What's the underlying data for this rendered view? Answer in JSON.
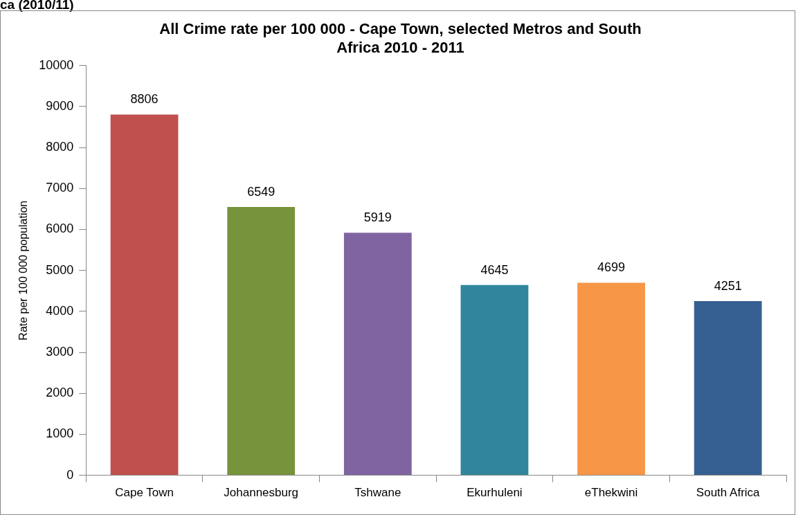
{
  "chart_data": {
    "type": "bar",
    "title": "All Crime rate per 100 000 - Cape Town, selected Metros and South Africa 2010 - 2011",
    "ylabel": "Rate per 100 000 population",
    "annotations": [
      "ca (2010/11)"
    ],
    "categories": [
      "Cape Town",
      "Johannesburg",
      "Tshwane",
      "Ekurhuleni",
      "eThekwini",
      "South Africa"
    ],
    "values": [
      8806,
      6549,
      5919,
      4645,
      4699,
      4251
    ],
    "colors": [
      "#c0504d",
      "#77933c",
      "#8064a2",
      "#31859c",
      "#f79646",
      "#376092"
    ],
    "ylim": [
      0,
      10000
    ],
    "yticks": [
      0,
      1000,
      2000,
      3000,
      4000,
      5000,
      6000,
      7000,
      8000,
      9000,
      10000
    ],
    "grid": false,
    "legend": false,
    "data_labels": true
  }
}
